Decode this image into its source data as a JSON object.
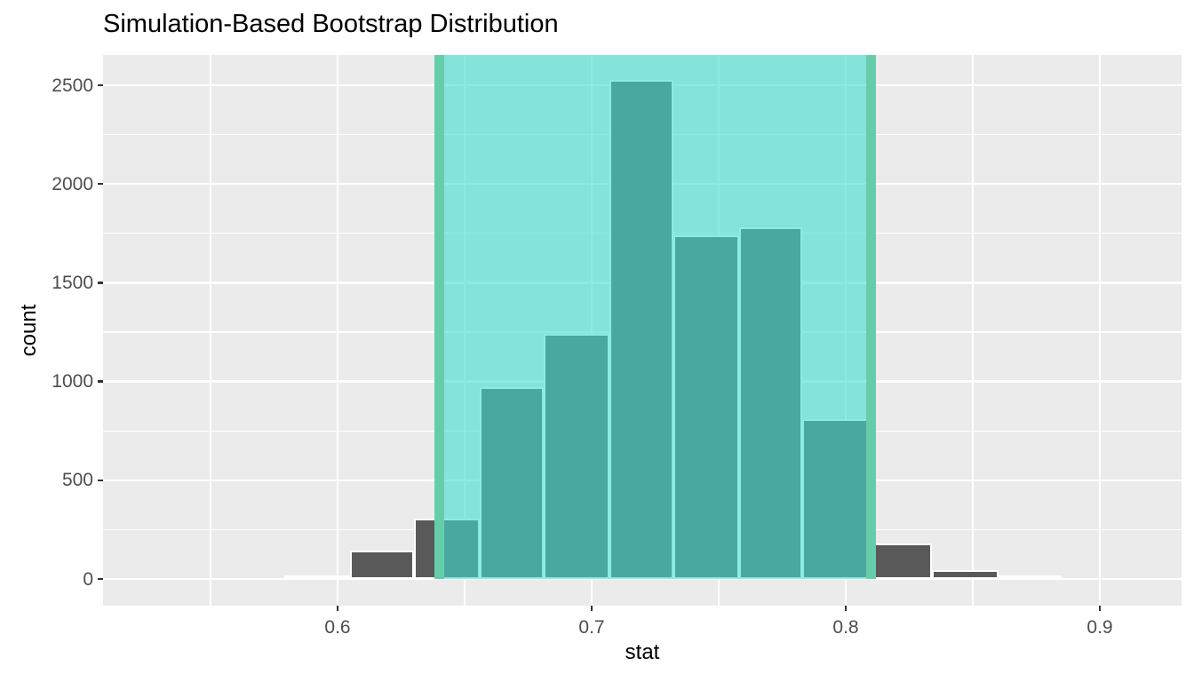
{
  "figure": {
    "title": "Simulation-Based Bootstrap Distribution"
  },
  "chart_data": {
    "type": "bar",
    "subtype": "histogram",
    "title": "Simulation-Based Bootstrap Distribution",
    "xlabel": "stat",
    "ylabel": "count",
    "xlim": [
      0.508,
      0.932
    ],
    "ylim": [
      0,
      2650
    ],
    "grid": true,
    "legend": "none",
    "x_ticks": [
      {
        "value": 0.6,
        "label": "0.6"
      },
      {
        "value": 0.7,
        "label": "0.7"
      },
      {
        "value": 0.8,
        "label": "0.8"
      },
      {
        "value": 0.9,
        "label": "0.9"
      }
    ],
    "y_ticks": [
      {
        "value": 0,
        "label": "0"
      },
      {
        "value": 500,
        "label": "500"
      },
      {
        "value": 1000,
        "label": "1000"
      },
      {
        "value": 1500,
        "label": "1500"
      },
      {
        "value": 2000,
        "label": "2000"
      },
      {
        "value": 2500,
        "label": "2500"
      }
    ],
    "x_minor_gridlines": [
      0.55,
      0.65,
      0.75,
      0.85
    ],
    "y_minor_gridlines": [
      250,
      750,
      1250,
      1750,
      2250
    ],
    "bins": [
      {
        "x0": 0.579,
        "x1": 0.605,
        "count": 10
      },
      {
        "x0": 0.605,
        "x1": 0.63,
        "count": 135
      },
      {
        "x0": 0.63,
        "x1": 0.656,
        "count": 295
      },
      {
        "x0": 0.656,
        "x1": 0.681,
        "count": 960
      },
      {
        "x0": 0.681,
        "x1": 0.707,
        "count": 1230
      },
      {
        "x0": 0.707,
        "x1": 0.732,
        "count": 2520
      },
      {
        "x0": 0.732,
        "x1": 0.758,
        "count": 1730
      },
      {
        "x0": 0.758,
        "x1": 0.783,
        "count": 1770
      },
      {
        "x0": 0.783,
        "x1": 0.809,
        "count": 800
      },
      {
        "x0": 0.809,
        "x1": 0.834,
        "count": 170
      },
      {
        "x0": 0.834,
        "x1": 0.86,
        "count": 35
      },
      {
        "x0": 0.86,
        "x1": 0.885,
        "count": 8
      }
    ],
    "shaded_confidence_interval": {
      "lower": 0.64,
      "upper": 0.81,
      "fill": "#40E0D0",
      "fill_alpha": 0.6,
      "edge_line_color": "#66CDAA",
      "edge_line_width": 11
    },
    "colors": {
      "panel_background": "#EBEBEB",
      "gridline": "#FFFFFF",
      "bar_fill": "#595959",
      "bar_border": "#FFFFFF",
      "tick_mark": "#333333",
      "tick_label": "#4D4D4D",
      "title": "#000000"
    }
  }
}
